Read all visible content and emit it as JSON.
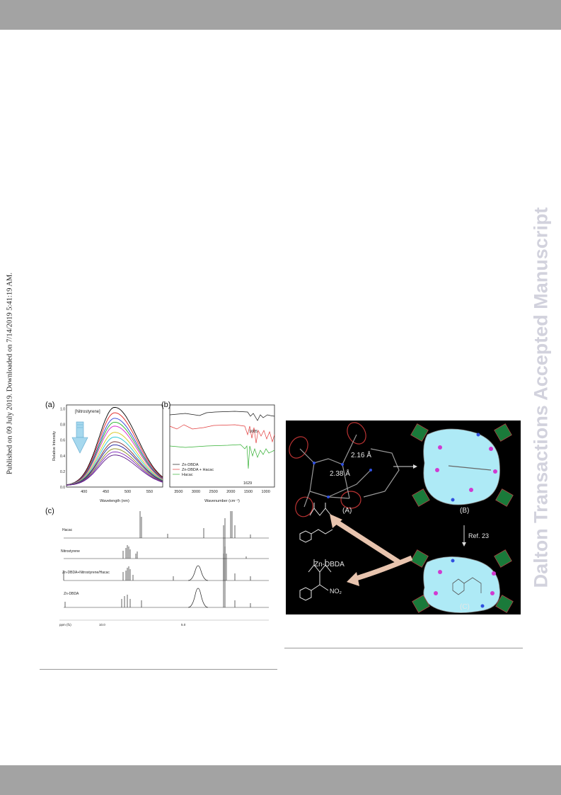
{
  "header_bar": "",
  "side_notice": "Published on 09 July 2019. Downloaded on 7/14/2019 5:41:19 AM.",
  "watermark": "Dalton Transactions Accepted Manuscript",
  "figure_left": {
    "panel_a": {
      "label": "(a)",
      "legend": "[Nitrostyrene]",
      "xlabel": "Wavelength (nm)",
      "ylabel": "Relative Intensity",
      "xticks": [
        "400",
        "450",
        "500",
        "550"
      ],
      "yticks": [
        "0.0",
        "0.2",
        "0.4",
        "0.6",
        "0.8",
        "1.0"
      ]
    },
    "panel_b": {
      "label": "(b)",
      "xlabel": "Wavenumber (cm⁻¹)",
      "xticks": [
        "3500",
        "3000",
        "2500",
        "2000",
        "1500",
        "1000"
      ],
      "legend": [
        "Zn-DBDA",
        "Zn-DBDA + Hacac",
        "Hacac"
      ],
      "annotations": [
        "1605",
        "1629"
      ]
    },
    "panel_c": {
      "label": "(c)",
      "traces": [
        "Hacac",
        "Nitrostyrene",
        "Zn-DBDA+Nitrostyrene/Hacac",
        "Zn-DBDA"
      ],
      "axis_prefix": "ppm (f1)",
      "ticks": [
        "10.0",
        "5.0"
      ]
    }
  },
  "figure_right": {
    "labels": {
      "A": "(A)",
      "B": "(B)",
      "C": "(C)"
    },
    "distances": [
      "2.38 Å",
      "2.16 Å"
    ],
    "ref": "Ref. 23",
    "catalyst": "Zn-DBDA",
    "product_sub": "NO₂"
  },
  "chart_data": [
    {
      "type": "line",
      "title": "",
      "xlabel": "Wavelength (nm)",
      "ylabel": "Relative Intensity",
      "xlim": [
        360,
        580
      ],
      "ylim": [
        0,
        1.05
      ],
      "peak_x": 470,
      "series": [
        {
          "color": "#000000",
          "peak": 1.0
        },
        {
          "color": "#e0211f",
          "peak": 0.93
        },
        {
          "color": "#2a3bd6",
          "peak": 0.86
        },
        {
          "color": "#21b326",
          "peak": 0.81
        },
        {
          "color": "#d522c9",
          "peak": 0.76
        },
        {
          "color": "#d7c71c",
          "peak": 0.68
        },
        {
          "color": "#1fc6d3",
          "peak": 0.62
        },
        {
          "color": "#7a2f2f",
          "peak": 0.56
        },
        {
          "color": "#1b1b9a",
          "peak": 0.52
        },
        {
          "color": "#8a8a1f",
          "peak": 0.47
        },
        {
          "color": "#7b21b8",
          "peak": 0.43
        },
        {
          "color": "#5a1888",
          "peak": 0.39
        }
      ]
    },
    {
      "type": "line",
      "title": "",
      "xlabel": "Wavenumber (cm⁻¹)",
      "xlim": [
        3750,
        750
      ],
      "series": [
        {
          "name": "Zn-DBDA",
          "color": "#1a1a1a"
        },
        {
          "name": "Zn-DBDA + Hacac",
          "color": "#e23b3b"
        },
        {
          "name": "Hacac",
          "color": "#33b033"
        }
      ]
    },
    {
      "type": "line",
      "title": "",
      "xlabel": "ppm (f1)",
      "xticks": [
        10.0,
        5.0
      ],
      "series": [
        {
          "name": "Hacac"
        },
        {
          "name": "Nitrostyrene"
        },
        {
          "name": "Zn-DBDA+Nitrostyrene/Hacac"
        },
        {
          "name": "Zn-DBDA"
        }
      ]
    }
  ]
}
